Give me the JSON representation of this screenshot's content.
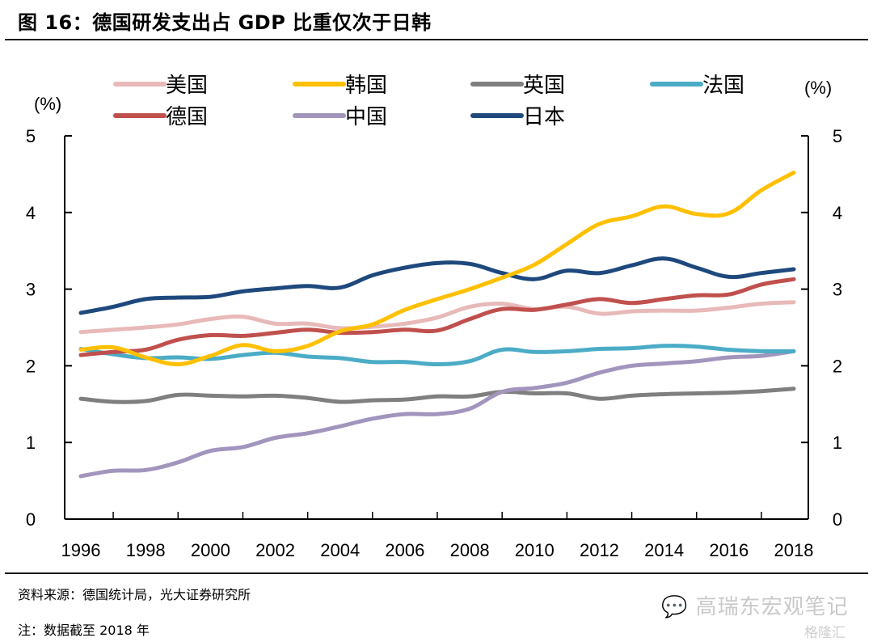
{
  "header": {
    "title": "图 16：德国研发支出占 GDP 比重仅次于日韩"
  },
  "footer": {
    "source": "资料来源：德国统计局，光大证券研究所",
    "note": "注：数据截至 2018 年",
    "watermark": "高瑞东宏观笔记",
    "watermark2": "格隆汇",
    "watermark_icon": "wechat-icon"
  },
  "chart_data": {
    "type": "line",
    "title": "德国研发支出占 GDP 比重仅次于日韩",
    "xlabel": "",
    "ylabel_left": "(%)",
    "ylabel_right": "(%)",
    "ylim": [
      0,
      5
    ],
    "yticks": [
      0,
      1,
      2,
      3,
      4,
      5
    ],
    "xlim": [
      1996,
      2018
    ],
    "xtick_labels": [
      "1996",
      "1998",
      "2000",
      "2002",
      "2004",
      "2006",
      "2008",
      "2010",
      "2012",
      "2014",
      "2016",
      "2018"
    ],
    "grid": false,
    "legend_position": "top",
    "x": [
      1996,
      1997,
      1998,
      1999,
      2000,
      2001,
      2002,
      2003,
      2004,
      2005,
      2006,
      2007,
      2008,
      2009,
      2010,
      2011,
      2012,
      2013,
      2014,
      2015,
      2016,
      2017,
      2018
    ],
    "series": [
      {
        "name": "美国",
        "color": "#E8B9B9",
        "values": [
          2.44,
          2.47,
          2.5,
          2.54,
          2.61,
          2.64,
          2.55,
          2.55,
          2.49,
          2.51,
          2.55,
          2.63,
          2.77,
          2.81,
          2.74,
          2.77,
          2.68,
          2.71,
          2.72,
          2.72,
          2.76,
          2.81,
          2.83
        ]
      },
      {
        "name": "韩国",
        "color": "#FFC000",
        "values": [
          2.21,
          2.24,
          2.11,
          2.02,
          2.13,
          2.27,
          2.19,
          2.26,
          2.45,
          2.54,
          2.73,
          2.87,
          3.0,
          3.15,
          3.32,
          3.59,
          3.85,
          3.95,
          4.08,
          3.98,
          3.99,
          4.29,
          4.52
        ]
      },
      {
        "name": "英国",
        "color": "#7F7F7F",
        "values": [
          1.57,
          1.53,
          1.54,
          1.62,
          1.61,
          1.6,
          1.61,
          1.58,
          1.53,
          1.55,
          1.56,
          1.6,
          1.6,
          1.66,
          1.64,
          1.64,
          1.57,
          1.61,
          1.63,
          1.64,
          1.65,
          1.67,
          1.7
        ]
      },
      {
        "name": "法国",
        "color": "#4BACC6",
        "values": [
          2.22,
          2.15,
          2.1,
          2.11,
          2.09,
          2.14,
          2.17,
          2.12,
          2.1,
          2.05,
          2.05,
          2.02,
          2.06,
          2.21,
          2.18,
          2.19,
          2.22,
          2.23,
          2.26,
          2.25,
          2.21,
          2.19,
          2.19
        ]
      },
      {
        "name": "德国",
        "color": "#C0504D",
        "values": [
          2.14,
          2.18,
          2.21,
          2.34,
          2.4,
          2.39,
          2.43,
          2.47,
          2.43,
          2.44,
          2.47,
          2.46,
          2.61,
          2.74,
          2.73,
          2.8,
          2.87,
          2.82,
          2.87,
          2.92,
          2.93,
          3.06,
          3.13
        ]
      },
      {
        "name": "中国",
        "color": "#A295BD",
        "values": [
          0.56,
          0.63,
          0.64,
          0.74,
          0.89,
          0.94,
          1.06,
          1.12,
          1.21,
          1.31,
          1.37,
          1.37,
          1.44,
          1.66,
          1.71,
          1.78,
          1.91,
          2.0,
          2.03,
          2.06,
          2.11,
          2.13,
          2.19
        ]
      },
      {
        "name": "日本",
        "color": "#1F497D",
        "values": [
          2.69,
          2.77,
          2.87,
          2.89,
          2.9,
          2.97,
          3.01,
          3.04,
          3.02,
          3.18,
          3.28,
          3.34,
          3.33,
          3.21,
          3.13,
          3.24,
          3.21,
          3.31,
          3.4,
          3.28,
          3.16,
          3.21,
          3.26
        ]
      }
    ]
  }
}
